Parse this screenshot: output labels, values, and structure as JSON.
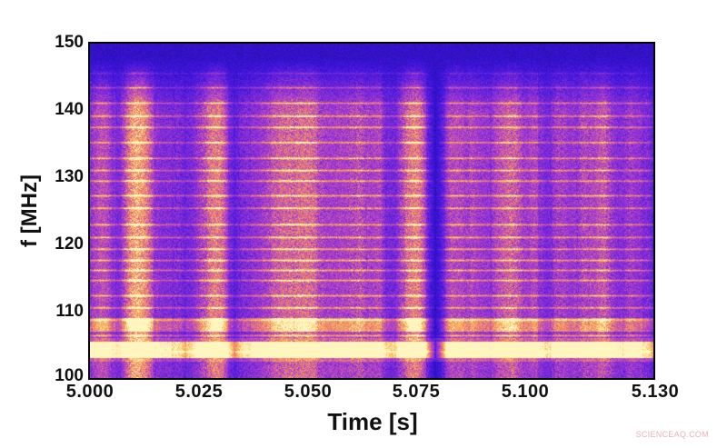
{
  "chart_data": {
    "type": "heatmap",
    "title": "",
    "xlabel": "Time [s]",
    "ylabel": "f [MHz]",
    "xlim": [
      5.0,
      5.13
    ],
    "ylim": [
      100,
      150
    ],
    "x_ticks": [
      "5.000",
      "5.025",
      "5.050",
      "5.075",
      "5.100",
      "5.130"
    ],
    "x_tick_values": [
      5.0,
      5.025,
      5.05,
      5.075,
      5.1,
      5.13
    ],
    "y_ticks": [
      "100",
      "110",
      "120",
      "130",
      "140",
      "150"
    ],
    "y_tick_values": [
      100,
      110,
      120,
      130,
      140,
      150
    ],
    "grid": false,
    "legend": null,
    "colormap": "plasma-like (dark blue -> purple -> orange -> pale yellow)",
    "description": "Spectrogram showing quasi-periodic broadband emission bursts (vertical striations) with a strong persistent band near 103-105 MHz and fine horizontal structures between ~105-140 MHz.",
    "bursts_time_s": [
      5.001,
      5.004,
      5.01,
      5.013,
      5.02,
      5.027,
      5.03,
      5.036,
      5.042,
      5.047,
      5.052,
      5.057,
      5.062,
      5.067,
      5.073,
      5.076,
      5.083,
      5.087,
      5.093,
      5.098,
      5.103,
      5.108,
      5.114,
      5.119,
      5.124,
      5.128
    ],
    "burst_strength": [
      0.6,
      0.5,
      0.95,
      0.7,
      0.5,
      0.85,
      0.7,
      0.5,
      0.7,
      0.9,
      0.8,
      0.55,
      0.85,
      0.6,
      0.85,
      0.75,
      0.55,
      0.7,
      0.55,
      0.85,
      0.6,
      0.7,
      0.75,
      0.8,
      0.6,
      0.5
    ],
    "strong_band_MHz": [
      103,
      105.5
    ],
    "secondary_band_MHz": [
      107,
      109
    ]
  },
  "watermark": "SCIENCEAQ.COM",
  "colors": {
    "background_low": "#1a0a8a",
    "mid": "#b040d0",
    "high": "#f6a24a",
    "peak": "#fff3b0"
  }
}
